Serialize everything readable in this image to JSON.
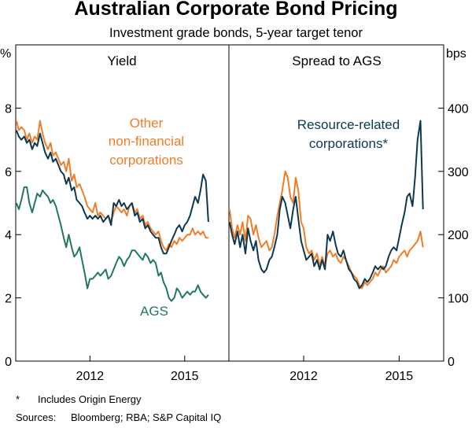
{
  "title": "Australian Corporate Bond Pricing",
  "subtitle": "Investment grade bonds, 5-year target tenor",
  "colors": {
    "orange": "#f07d28",
    "navy": "#0c3950",
    "green": "#217a55",
    "axis": "#000000"
  },
  "footnotes": {
    "star": "*",
    "star_text": "Includes Origin Energy",
    "sources_label": "Sources:",
    "sources_text": "Bloomberg; RBA; S&P Capital IQ"
  },
  "chart_data": [
    {
      "type": "line",
      "panel": "left",
      "title": "Yield",
      "ylabel": "%",
      "ylim": [
        0,
        10
      ],
      "yticks": [
        0,
        2,
        4,
        6,
        8
      ],
      "xlim": [
        2009.65,
        2016.4
      ],
      "xticks": [
        2012,
        2015
      ],
      "xtick_labels": [
        "2012",
        "2015"
      ],
      "annotations": [
        {
          "text": "Other",
          "series": "Other non-financial corporations"
        },
        {
          "text": "non-financial",
          "series": "Other non-financial corporations"
        },
        {
          "text": "corporations",
          "series": "Other non-financial corporations"
        },
        {
          "text": "AGS",
          "series": "AGS"
        }
      ],
      "series": [
        {
          "name": "Other non-financial corporations",
          "color": "orange",
          "x": [
            2009.67,
            2009.75,
            2009.83,
            2009.92,
            2010.0,
            2010.08,
            2010.17,
            2010.25,
            2010.33,
            2010.42,
            2010.5,
            2010.58,
            2010.67,
            2010.75,
            2010.83,
            2010.92,
            2011.0,
            2011.08,
            2011.17,
            2011.25,
            2011.33,
            2011.42,
            2011.5,
            2011.58,
            2011.67,
            2011.75,
            2011.83,
            2011.92,
            2012.0,
            2012.08,
            2012.17,
            2012.25,
            2012.33,
            2012.42,
            2012.5,
            2012.58,
            2012.67,
            2012.75,
            2012.83,
            2012.92,
            2013.0,
            2013.08,
            2013.17,
            2013.25,
            2013.33,
            2013.42,
            2013.5,
            2013.58,
            2013.67,
            2013.75,
            2013.83,
            2013.92,
            2014.0,
            2014.08,
            2014.17,
            2014.25,
            2014.33,
            2014.42,
            2014.5,
            2014.58,
            2014.67,
            2014.75,
            2014.83,
            2014.92,
            2015.0,
            2015.08,
            2015.17,
            2015.25,
            2015.33,
            2015.42,
            2015.5,
            2015.58,
            2015.67,
            2015.75
          ],
          "values": [
            7.6,
            7.3,
            7.4,
            7.3,
            7.0,
            7.2,
            6.9,
            7.1,
            7.0,
            7.6,
            7.2,
            6.9,
            6.7,
            6.9,
            6.5,
            6.6,
            6.4,
            6.2,
            6.3,
            6.0,
            6.4,
            5.7,
            5.9,
            5.5,
            5.6,
            5.4,
            5.2,
            4.9,
            4.8,
            4.7,
            5.0,
            4.6,
            4.7,
            4.6,
            4.5,
            4.6,
            4.4,
            4.7,
            4.9,
            4.8,
            4.7,
            4.8,
            4.6,
            4.9,
            5.0,
            4.7,
            4.8,
            4.5,
            4.6,
            4.3,
            4.4,
            4.2,
            4.1,
            4.0,
            4.1,
            3.8,
            3.6,
            3.5,
            3.7,
            3.6,
            3.8,
            3.7,
            3.9,
            3.8,
            3.9,
            4.0,
            4.0,
            4.2,
            4.0,
            4.1,
            4.0,
            4.1,
            3.9,
            3.9
          ]
        },
        {
          "name": "Resource-related corporations",
          "color": "navy",
          "x": [
            2009.67,
            2009.75,
            2009.83,
            2009.92,
            2010.0,
            2010.08,
            2010.17,
            2010.25,
            2010.33,
            2010.42,
            2010.5,
            2010.58,
            2010.67,
            2010.75,
            2010.83,
            2010.92,
            2011.0,
            2011.08,
            2011.17,
            2011.25,
            2011.33,
            2011.42,
            2011.5,
            2011.58,
            2011.67,
            2011.75,
            2011.83,
            2011.92,
            2012.0,
            2012.08,
            2012.17,
            2012.25,
            2012.33,
            2012.42,
            2012.5,
            2012.58,
            2012.67,
            2012.75,
            2012.83,
            2012.92,
            2013.0,
            2013.08,
            2013.17,
            2013.25,
            2013.33,
            2013.42,
            2013.5,
            2013.58,
            2013.67,
            2013.75,
            2013.83,
            2013.92,
            2014.0,
            2014.08,
            2014.17,
            2014.25,
            2014.33,
            2014.42,
            2014.5,
            2014.58,
            2014.67,
            2014.75,
            2014.83,
            2014.92,
            2015.0,
            2015.08,
            2015.17,
            2015.25,
            2015.33,
            2015.42,
            2015.5,
            2015.58,
            2015.67,
            2015.75
          ],
          "values": [
            7.3,
            7.1,
            7.0,
            7.1,
            6.9,
            7.0,
            6.7,
            6.9,
            6.8,
            7.2,
            6.9,
            6.6,
            6.4,
            6.6,
            6.3,
            6.4,
            6.2,
            6.0,
            5.9,
            5.6,
            5.8,
            5.4,
            5.5,
            5.1,
            5.0,
            4.9,
            4.7,
            4.5,
            4.6,
            4.5,
            4.6,
            4.5,
            4.6,
            4.4,
            4.5,
            4.6,
            4.3,
            5.0,
            4.9,
            5.1,
            4.9,
            5.0,
            4.8,
            4.9,
            5.0,
            4.6,
            4.7,
            4.4,
            4.5,
            4.2,
            4.3,
            4.1,
            4.0,
            3.9,
            3.9,
            3.6,
            3.4,
            3.4,
            3.6,
            3.8,
            4.0,
            4.2,
            4.3,
            4.1,
            4.3,
            4.4,
            4.6,
            4.9,
            5.2,
            5.0,
            5.4,
            5.9,
            5.7,
            4.4
          ]
        },
        {
          "name": "AGS",
          "color": "green",
          "x": [
            2009.67,
            2009.75,
            2009.83,
            2009.92,
            2010.0,
            2010.08,
            2010.17,
            2010.25,
            2010.33,
            2010.42,
            2010.5,
            2010.58,
            2010.67,
            2010.75,
            2010.83,
            2010.92,
            2011.0,
            2011.08,
            2011.17,
            2011.25,
            2011.33,
            2011.42,
            2011.5,
            2011.58,
            2011.67,
            2011.75,
            2011.83,
            2011.92,
            2012.0,
            2012.08,
            2012.17,
            2012.25,
            2012.33,
            2012.42,
            2012.5,
            2012.58,
            2012.67,
            2012.75,
            2012.83,
            2012.92,
            2013.0,
            2013.08,
            2013.17,
            2013.25,
            2013.33,
            2013.42,
            2013.5,
            2013.58,
            2013.67,
            2013.75,
            2013.83,
            2013.92,
            2014.0,
            2014.08,
            2014.17,
            2014.25,
            2014.33,
            2014.42,
            2014.5,
            2014.58,
            2014.67,
            2014.75,
            2014.83,
            2014.92,
            2015.0,
            2015.08,
            2015.17,
            2015.25,
            2015.33,
            2015.42,
            2015.5,
            2015.58,
            2015.67,
            2015.75
          ],
          "values": [
            5.0,
            4.8,
            5.1,
            5.5,
            5.5,
            5.0,
            4.7,
            5.0,
            5.3,
            5.2,
            5.4,
            5.3,
            5.2,
            5.0,
            5.1,
            4.9,
            4.6,
            4.3,
            3.9,
            3.6,
            4.0,
            3.6,
            3.3,
            3.4,
            3.6,
            3.2,
            2.8,
            2.3,
            2.6,
            2.6,
            2.7,
            2.8,
            2.7,
            2.8,
            2.9,
            2.6,
            2.7,
            2.9,
            3.1,
            3.3,
            3.2,
            3.0,
            3.2,
            3.3,
            3.5,
            3.5,
            3.4,
            3.3,
            3.2,
            3.4,
            3.3,
            3.1,
            3.2,
            3.1,
            2.7,
            2.8,
            2.5,
            2.3,
            2.0,
            1.9,
            2.0,
            2.3,
            2.2,
            2.0,
            2.1,
            2.2,
            2.1,
            2.2,
            2.2,
            2.4,
            2.2,
            2.1,
            2.0,
            2.1
          ]
        }
      ]
    },
    {
      "type": "line",
      "panel": "right",
      "title": "Spread to AGS",
      "ylabel": "bps",
      "ylim": [
        0,
        500
      ],
      "yticks": [
        0,
        100,
        200,
        300,
        400
      ],
      "xlim": [
        2009.65,
        2016.4
      ],
      "xticks": [
        2012,
        2015
      ],
      "xtick_labels": [
        "2012",
        "2015"
      ],
      "annotations": [
        {
          "text": "Resource-related",
          "series": "Resource-related corporations"
        },
        {
          "text": "corporations*",
          "series": "Resource-related corporations"
        }
      ],
      "series": [
        {
          "name": "Other non-financial corporations",
          "color": "orange",
          "x": [
            2009.67,
            2009.75,
            2009.83,
            2009.92,
            2010.0,
            2010.08,
            2010.17,
            2010.25,
            2010.33,
            2010.42,
            2010.5,
            2010.58,
            2010.67,
            2010.75,
            2010.83,
            2010.92,
            2011.0,
            2011.08,
            2011.17,
            2011.25,
            2011.33,
            2011.42,
            2011.5,
            2011.58,
            2011.67,
            2011.75,
            2011.83,
            2011.92,
            2012.0,
            2012.08,
            2012.17,
            2012.25,
            2012.33,
            2012.42,
            2012.5,
            2012.58,
            2012.67,
            2012.75,
            2012.83,
            2012.92,
            2013.0,
            2013.08,
            2013.17,
            2013.25,
            2013.33,
            2013.42,
            2013.5,
            2013.58,
            2013.67,
            2013.75,
            2013.83,
            2013.92,
            2014.0,
            2014.08,
            2014.17,
            2014.25,
            2014.33,
            2014.42,
            2014.5,
            2014.58,
            2014.67,
            2014.75,
            2014.83,
            2014.92,
            2015.0,
            2015.08,
            2015.17,
            2015.25,
            2015.33,
            2015.42,
            2015.5,
            2015.58,
            2015.67,
            2015.75
          ],
          "values": [
            240,
            210,
            195,
            215,
            200,
            220,
            190,
            230,
            225,
            200,
            215,
            195,
            180,
            185,
            190,
            175,
            180,
            200,
            230,
            250,
            270,
            300,
            290,
            260,
            250,
            290,
            270,
            220,
            210,
            180,
            170,
            175,
            160,
            170,
            150,
            165,
            150,
            170,
            175,
            165,
            170,
            160,
            155,
            165,
            160,
            150,
            140,
            135,
            130,
            120,
            115,
            125,
            120,
            125,
            130,
            140,
            135,
            145,
            150,
            140,
            145,
            150,
            160,
            155,
            165,
            170,
            175,
            165,
            175,
            180,
            185,
            190,
            205,
            180
          ]
        },
        {
          "name": "Resource-related corporations",
          "color": "navy",
          "x": [
            2009.67,
            2009.75,
            2009.83,
            2009.92,
            2010.0,
            2010.08,
            2010.17,
            2010.25,
            2010.33,
            2010.42,
            2010.5,
            2010.58,
            2010.67,
            2010.75,
            2010.83,
            2010.92,
            2011.0,
            2011.08,
            2011.17,
            2011.25,
            2011.33,
            2011.42,
            2011.5,
            2011.58,
            2011.67,
            2011.75,
            2011.83,
            2011.92,
            2012.0,
            2012.08,
            2012.17,
            2012.25,
            2012.33,
            2012.42,
            2012.5,
            2012.58,
            2012.67,
            2012.75,
            2012.83,
            2012.92,
            2013.0,
            2013.08,
            2013.17,
            2013.25,
            2013.33,
            2013.42,
            2013.5,
            2013.58,
            2013.67,
            2013.75,
            2013.83,
            2013.92,
            2014.0,
            2014.08,
            2014.17,
            2014.25,
            2014.33,
            2014.42,
            2014.5,
            2014.58,
            2014.67,
            2014.75,
            2014.83,
            2014.92,
            2015.0,
            2015.08,
            2015.17,
            2015.25,
            2015.33,
            2015.42,
            2015.5,
            2015.58,
            2015.67,
            2015.75
          ],
          "values": [
            220,
            200,
            185,
            205,
            180,
            200,
            170,
            210,
            190,
            175,
            190,
            160,
            145,
            140,
            145,
            160,
            165,
            180,
            200,
            240,
            260,
            250,
            230,
            210,
            240,
            260,
            225,
            190,
            175,
            160,
            165,
            170,
            150,
            160,
            145,
            160,
            145,
            200,
            190,
            205,
            185,
            170,
            165,
            175,
            160,
            145,
            140,
            130,
            125,
            115,
            120,
            130,
            125,
            130,
            140,
            150,
            145,
            150,
            145,
            150,
            165,
            175,
            180,
            175,
            195,
            215,
            235,
            260,
            265,
            245,
            290,
            350,
            380,
            240
          ]
        }
      ]
    }
  ]
}
